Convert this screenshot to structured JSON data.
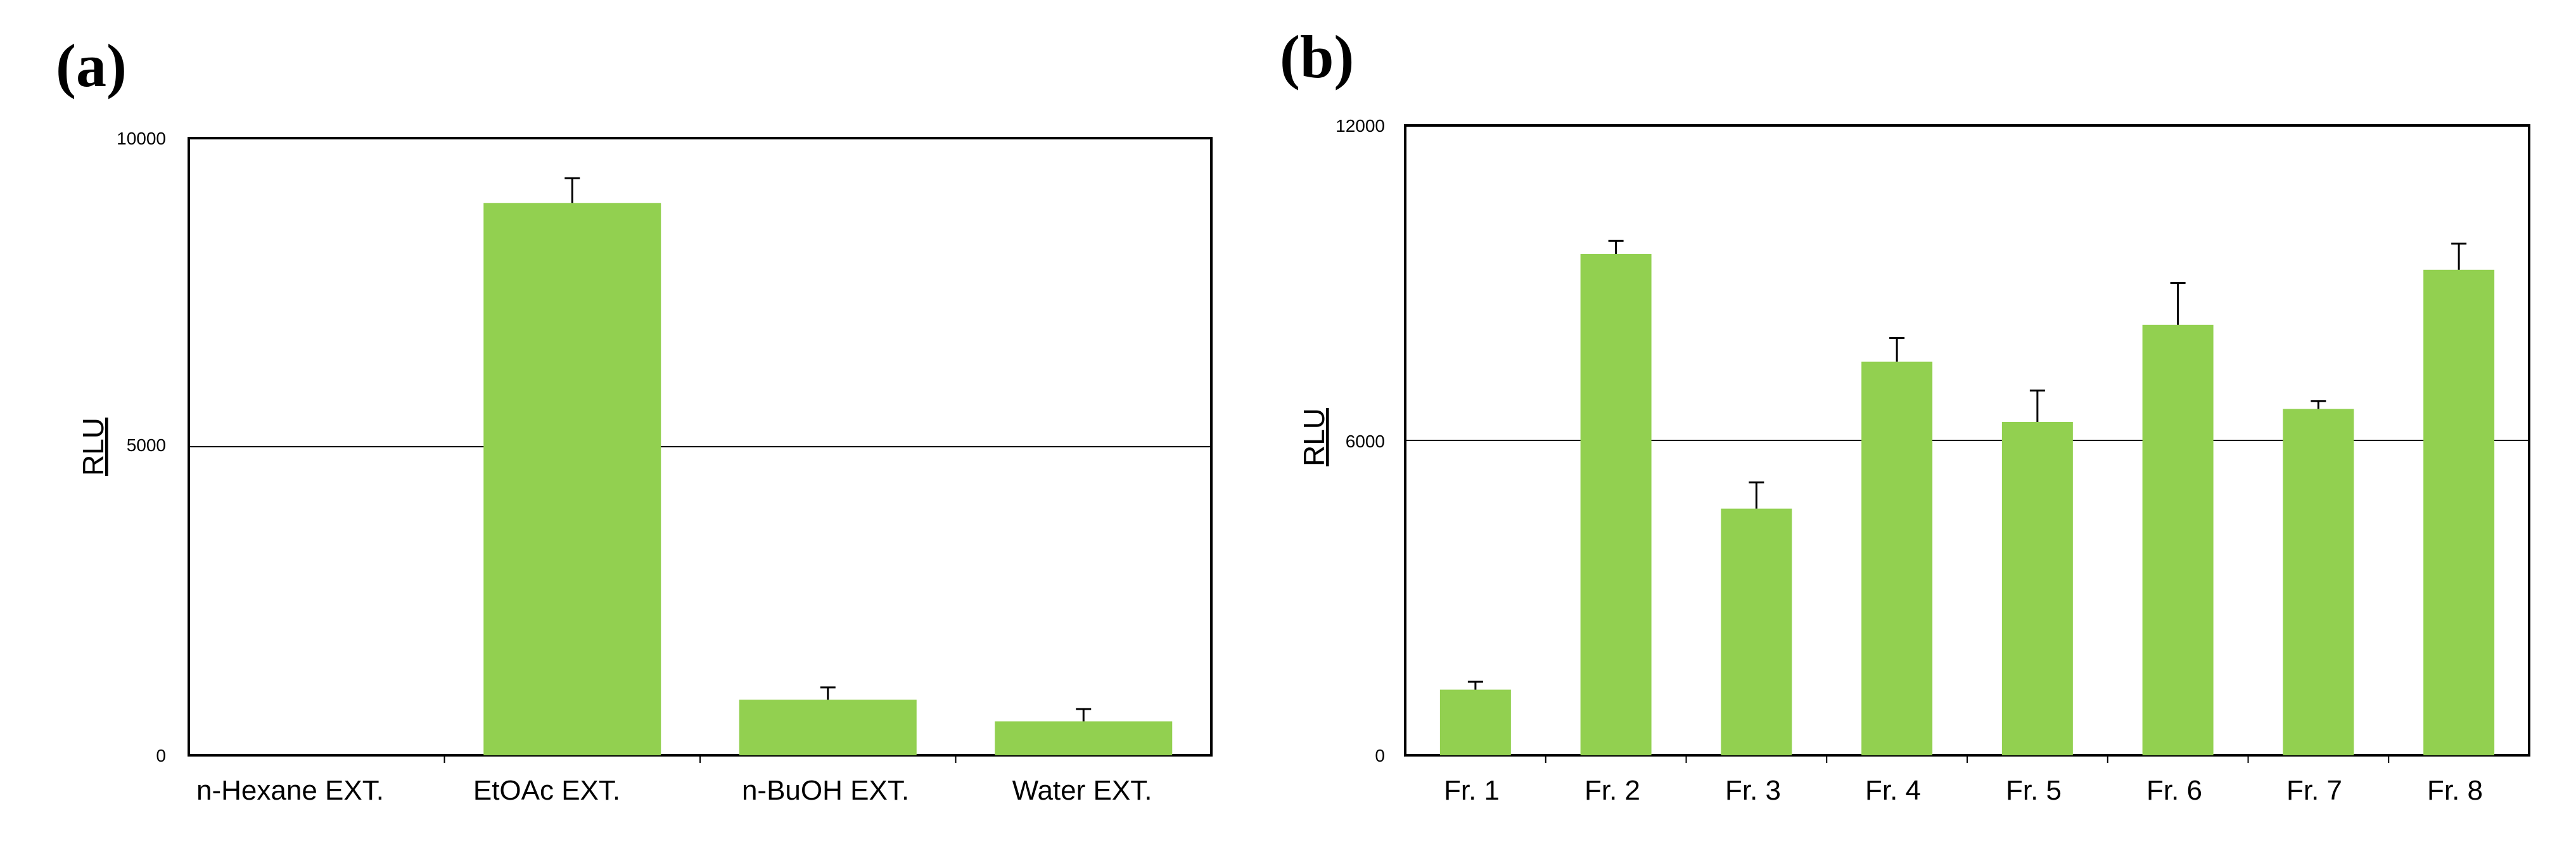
{
  "colors": {
    "bar": "#92d050",
    "frame": "#000000",
    "reference_line": "#000000"
  },
  "chart_data": [
    {
      "panel_label": "(a)",
      "type": "bar",
      "ylabel": "RLU",
      "ylim": [
        0,
        10000
      ],
      "yticks": [
        "0",
        "5000",
        "10000"
      ],
      "reference_line_value": 5000,
      "categories": [
        "n-Hexane EXT.",
        "EtOAc EXT.",
        "n-BuOH EXT.",
        "Water EXT."
      ],
      "values": [
        0,
        8950,
        900,
        550
      ],
      "errors": [
        0,
        400,
        200,
        200
      ]
    },
    {
      "panel_label": "(b)",
      "type": "bar",
      "ylabel": "RLU",
      "ylim": [
        0,
        12000
      ],
      "yticks": [
        "0",
        "6000",
        "12000"
      ],
      "reference_line_value": 6000,
      "categories": [
        "Fr. 1",
        "Fr. 2",
        "Fr. 3",
        "Fr. 4",
        "Fr. 5",
        "Fr. 6",
        "Fr. 7",
        "Fr. 8"
      ],
      "values": [
        1250,
        9550,
        4700,
        7500,
        6350,
        8200,
        6600,
        9250
      ],
      "errors": [
        150,
        250,
        500,
        450,
        600,
        800,
        150,
        500
      ]
    }
  ]
}
